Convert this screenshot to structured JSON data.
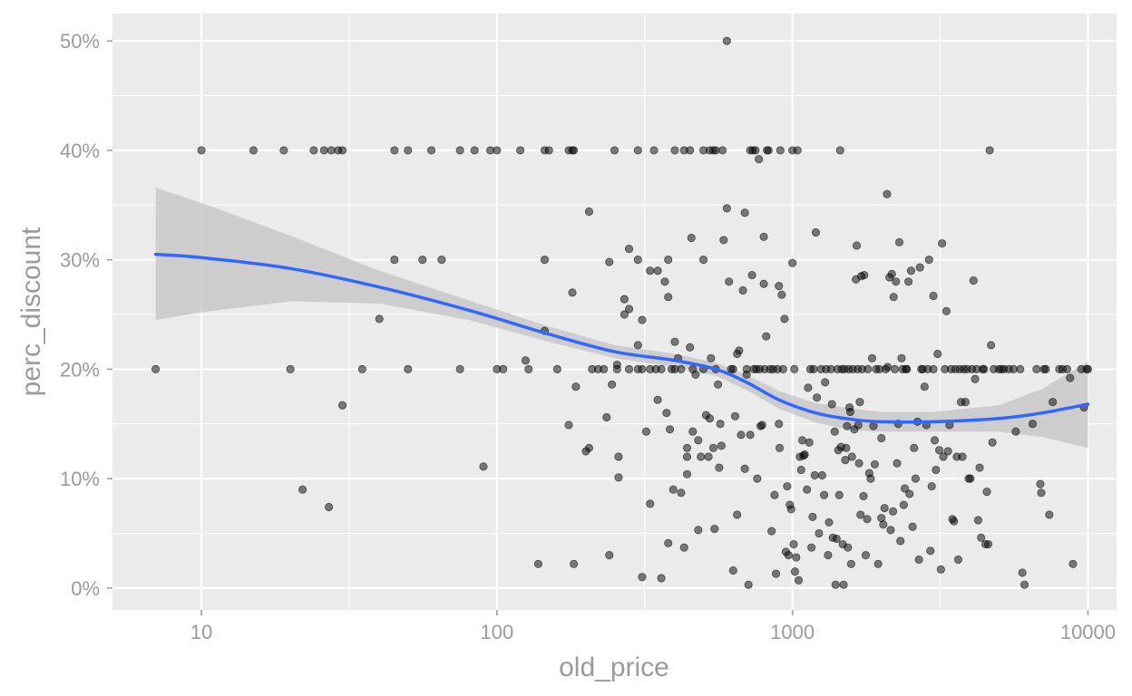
{
  "chart_data": {
    "type": "scatter",
    "title": "",
    "xlabel": "old_price",
    "ylabel": "perc_discount",
    "x_scale": "log10",
    "xlim": [
      5,
      12500
    ],
    "ylim": [
      -0.02,
      0.525
    ],
    "x_ticks": [
      10,
      100,
      1000,
      10000
    ],
    "x_tick_labels": [
      "10",
      "100",
      "1000",
      "10000"
    ],
    "y_ticks": [
      0,
      0.1,
      0.2,
      0.3,
      0.4,
      0.5
    ],
    "y_tick_labels": [
      "0%",
      "10%",
      "20%",
      "30%",
      "40%",
      "50%"
    ],
    "grid": true,
    "legend": "none",
    "colors": {
      "panel_bg": "#ebebeb",
      "grid": "#ffffff",
      "points": "#000000",
      "smooth_line": "#3366ff",
      "confidence_band": "#c8c8c8",
      "axis_text": "#9b9b9b"
    },
    "points": [
      [
        7,
        0.2
      ],
      [
        10,
        0.4
      ],
      [
        15,
        0.4
      ],
      [
        19,
        0.4
      ],
      [
        20,
        0.2
      ],
      [
        22,
        0.09
      ],
      [
        24,
        0.4
      ],
      [
        26,
        0.4
      ],
      [
        27,
        0.074
      ],
      [
        27.5,
        0.4
      ],
      [
        29,
        0.4
      ],
      [
        30,
        0.4
      ],
      [
        30,
        0.167
      ],
      [
        35,
        0.2
      ],
      [
        40,
        0.246
      ],
      [
        45,
        0.4
      ],
      [
        45,
        0.3
      ],
      [
        50,
        0.4
      ],
      [
        50,
        0.2
      ],
      [
        56,
        0.3
      ],
      [
        60,
        0.4
      ],
      [
        65,
        0.3
      ],
      [
        75,
        0.4
      ],
      [
        75,
        0.2
      ],
      [
        84,
        0.4
      ],
      [
        90,
        0.111
      ],
      [
        95,
        0.4
      ],
      [
        100,
        0.4
      ],
      [
        100,
        0.2
      ],
      [
        105,
        0.2
      ],
      [
        120,
        0.4
      ],
      [
        125,
        0.208
      ],
      [
        128,
        0.2
      ],
      [
        138,
        0.022
      ],
      [
        145,
        0.4
      ],
      [
        145,
        0.3
      ],
      [
        145,
        0.235
      ],
      [
        150,
        0.4
      ],
      [
        160,
        0.2
      ],
      [
        175,
        0.4
      ],
      [
        175,
        0.149
      ],
      [
        180,
        0.4
      ],
      [
        180,
        0.27
      ],
      [
        182,
        0.4
      ],
      [
        182,
        0.022
      ],
      [
        185,
        0.184
      ],
      [
        200,
        0.125
      ],
      [
        205,
        0.344
      ],
      [
        205,
        0.128
      ],
      [
        210,
        0.2
      ],
      [
        220,
        0.2
      ],
      [
        230,
        0.2
      ],
      [
        235,
        0.156
      ],
      [
        240,
        0.298
      ],
      [
        240,
        0.03
      ],
      [
        245,
        0.186
      ],
      [
        250,
        0.4
      ],
      [
        255,
        0.2
      ],
      [
        255,
        0.204
      ],
      [
        258,
        0.12
      ],
      [
        258,
        0.101
      ],
      [
        270,
        0.25
      ],
      [
        270,
        0.264
      ],
      [
        280,
        0.2
      ],
      [
        280,
        0.31
      ],
      [
        280,
        0.255
      ],
      [
        300,
        0.4
      ],
      [
        300,
        0.3
      ],
      [
        300,
        0.2
      ],
      [
        300,
        0.222
      ],
      [
        310,
        0.2
      ],
      [
        310,
        0.245
      ],
      [
        310,
        0.01
      ],
      [
        320,
        0.143
      ],
      [
        330,
        0.077
      ],
      [
        330,
        0.2
      ],
      [
        330,
        0.29
      ],
      [
        340,
        0.4
      ],
      [
        345,
        0.2
      ],
      [
        350,
        0.29
      ],
      [
        350,
        0.172
      ],
      [
        360,
        0.2
      ],
      [
        360,
        0.009
      ],
      [
        370,
        0.28
      ],
      [
        375,
        0.16
      ],
      [
        380,
        0.041
      ],
      [
        380,
        0.3
      ],
      [
        380,
        0.266
      ],
      [
        385,
        0.145
      ],
      [
        390,
        0.2
      ],
      [
        395,
        0.09
      ],
      [
        400,
        0.4
      ],
      [
        400,
        0.225
      ],
      [
        400,
        0.2
      ],
      [
        410,
        0.21
      ],
      [
        420,
        0.2
      ],
      [
        420,
        0.087
      ],
      [
        430,
        0.4
      ],
      [
        430,
        0.037
      ],
      [
        440,
        0.12
      ],
      [
        440,
        0.128
      ],
      [
        440,
        0.104
      ],
      [
        450,
        0.4
      ],
      [
        450,
        0.22
      ],
      [
        455,
        0.32
      ],
      [
        460,
        0.143
      ],
      [
        460,
        0.2
      ],
      [
        470,
        0.195
      ],
      [
        480,
        0.135
      ],
      [
        480,
        0.053
      ],
      [
        490,
        0.12
      ],
      [
        500,
        0.4
      ],
      [
        500,
        0.3
      ],
      [
        500,
        0.2
      ],
      [
        510,
        0.158
      ],
      [
        520,
        0.12
      ],
      [
        525,
        0.4
      ],
      [
        525,
        0.155
      ],
      [
        530,
        0.21
      ],
      [
        540,
        0.4
      ],
      [
        540,
        0.128
      ],
      [
        545,
        0.054
      ],
      [
        550,
        0.4
      ],
      [
        550,
        0.2
      ],
      [
        560,
        0.186
      ],
      [
        565,
        0.11
      ],
      [
        570,
        0.15
      ],
      [
        575,
        0.13
      ],
      [
        580,
        0.4
      ],
      [
        585,
        0.318
      ],
      [
        600,
        0.5
      ],
      [
        600,
        0.347
      ],
      [
        610,
        0.28
      ],
      [
        620,
        0.2
      ],
      [
        630,
        0.2
      ],
      [
        630,
        0.016
      ],
      [
        640,
        0.157
      ],
      [
        650,
        0.067
      ],
      [
        650,
        0.214
      ],
      [
        660,
        0.217
      ],
      [
        670,
        0.14
      ],
      [
        680,
        0.272
      ],
      [
        690,
        0.343
      ],
      [
        690,
        0.109
      ],
      [
        700,
        0.195
      ],
      [
        700,
        0.2
      ],
      [
        710,
        0.003
      ],
      [
        720,
        0.4
      ],
      [
        720,
        0.14
      ],
      [
        730,
        0.286
      ],
      [
        735,
        0.4
      ],
      [
        740,
        0.2
      ],
      [
        750,
        0.4
      ],
      [
        755,
        0.2
      ],
      [
        760,
        0.1
      ],
      [
        770,
        0.392
      ],
      [
        775,
        0.2
      ],
      [
        780,
        0.148
      ],
      [
        790,
        0.149
      ],
      [
        800,
        0.321
      ],
      [
        800,
        0.278
      ],
      [
        805,
        0.2
      ],
      [
        815,
        0.23
      ],
      [
        820,
        0.4
      ],
      [
        830,
        0.4
      ],
      [
        840,
        0.2
      ],
      [
        850,
        0.052
      ],
      [
        860,
        0.2
      ],
      [
        870,
        0.085
      ],
      [
        880,
        0.013
      ],
      [
        890,
        0.2
      ],
      [
        900,
        0.276
      ],
      [
        900,
        0.15
      ],
      [
        905,
        0.128
      ],
      [
        910,
        0.4
      ],
      [
        920,
        0.268
      ],
      [
        930,
        0.2
      ],
      [
        940,
        0.246
      ],
      [
        950,
        0.033
      ],
      [
        960,
        0.093
      ],
      [
        970,
        0.03
      ],
      [
        980,
        0.076
      ],
      [
        990,
        0.072
      ],
      [
        1000,
        0.297
      ],
      [
        1000,
        0.4
      ],
      [
        1010,
        0.04
      ],
      [
        1015,
        0.2
      ],
      [
        1020,
        0.015
      ],
      [
        1030,
        0.028
      ],
      [
        1040,
        0.4
      ],
      [
        1050,
        0.007
      ],
      [
        1060,
        0.12
      ],
      [
        1070,
        0.108
      ],
      [
        1080,
        0.135
      ],
      [
        1090,
        0.121
      ],
      [
        1100,
        0.122
      ],
      [
        1120,
        0.09
      ],
      [
        1130,
        0.183
      ],
      [
        1140,
        0.133
      ],
      [
        1150,
        0.2
      ],
      [
        1160,
        0.037
      ],
      [
        1170,
        0.065
      ],
      [
        1180,
        0.2
      ],
      [
        1190,
        0.103
      ],
      [
        1200,
        0.325
      ],
      [
        1210,
        0.174
      ],
      [
        1230,
        0.05
      ],
      [
        1250,
        0.2
      ],
      [
        1260,
        0.103
      ],
      [
        1280,
        0.085
      ],
      [
        1290,
        0.188
      ],
      [
        1300,
        0.2
      ],
      [
        1320,
        0.03
      ],
      [
        1330,
        0.06
      ],
      [
        1350,
        0.2
      ],
      [
        1360,
        0.168
      ],
      [
        1370,
        0.046
      ],
      [
        1390,
        0.143
      ],
      [
        1400,
        0.003
      ],
      [
        1410,
        0.045
      ],
      [
        1420,
        0.2
      ],
      [
        1430,
        0.126
      ],
      [
        1440,
        0.085
      ],
      [
        1450,
        0.4
      ],
      [
        1460,
        0.129
      ],
      [
        1470,
        0.2
      ],
      [
        1480,
        0.04
      ],
      [
        1490,
        0.003
      ],
      [
        1500,
        0.2
      ],
      [
        1510,
        0.117
      ],
      [
        1520,
        0.128
      ],
      [
        1530,
        0.148
      ],
      [
        1540,
        0.037
      ],
      [
        1550,
        0.2
      ],
      [
        1560,
        0.165
      ],
      [
        1570,
        0.161
      ],
      [
        1580,
        0.022
      ],
      [
        1590,
        0.12
      ],
      [
        1600,
        0.2
      ],
      [
        1620,
        0.145
      ],
      [
        1640,
        0.282
      ],
      [
        1650,
        0.313
      ],
      [
        1660,
        0.2
      ],
      [
        1670,
        0.149
      ],
      [
        1680,
        0.114
      ],
      [
        1690,
        0.17
      ],
      [
        1700,
        0.067
      ],
      [
        1710,
        0.285
      ],
      [
        1720,
        0.2
      ],
      [
        1740,
        0.084
      ],
      [
        1750,
        0.286
      ],
      [
        1770,
        0.03
      ],
      [
        1790,
        0.063
      ],
      [
        1800,
        0.2
      ],
      [
        1820,
        0.105
      ],
      [
        1840,
        0.1
      ],
      [
        1860,
        0.21
      ],
      [
        1880,
        0.148
      ],
      [
        1900,
        0.113
      ],
      [
        1920,
        0.2
      ],
      [
        1950,
        0.022
      ],
      [
        1970,
        0.2
      ],
      [
        2000,
        0.064
      ],
      [
        2000,
        0.137
      ],
      [
        2030,
        0.058
      ],
      [
        2050,
        0.073
      ],
      [
        2070,
        0.2
      ],
      [
        2090,
        0.36
      ],
      [
        2100,
        0.202
      ],
      [
        2130,
        0.284
      ],
      [
        2150,
        0.053
      ],
      [
        2170,
        0.287
      ],
      [
        2190,
        0.07
      ],
      [
        2200,
        0.266
      ],
      [
        2220,
        0.2
      ],
      [
        2240,
        0.28
      ],
      [
        2260,
        0.114
      ],
      [
        2280,
        0.15
      ],
      [
        2300,
        0.316
      ],
      [
        2320,
        0.043
      ],
      [
        2340,
        0.21
      ],
      [
        2360,
        0.2
      ],
      [
        2380,
        0.076
      ],
      [
        2400,
        0.091
      ],
      [
        2420,
        0.2
      ],
      [
        2440,
        0.2
      ],
      [
        2470,
        0.28
      ],
      [
        2490,
        0.086
      ],
      [
        2520,
        0.29
      ],
      [
        2550,
        0.056
      ],
      [
        2580,
        0.128
      ],
      [
        2610,
        0.1
      ],
      [
        2650,
        0.152
      ],
      [
        2680,
        0.026
      ],
      [
        2700,
        0.293
      ],
      [
        2730,
        0.2
      ],
      [
        2760,
        0.2
      ],
      [
        2800,
        0.184
      ],
      [
        2840,
        0.149
      ],
      [
        2870,
        0.2
      ],
      [
        2900,
        0.3
      ],
      [
        2930,
        0.034
      ],
      [
        2960,
        0.093
      ],
      [
        3000,
        0.2
      ],
      [
        3000,
        0.267
      ],
      [
        3030,
        0.135
      ],
      [
        3060,
        0.108
      ],
      [
        3100,
        0.214
      ],
      [
        3140,
        0.126
      ],
      [
        3180,
        0.017
      ],
      [
        3210,
        0.315
      ],
      [
        3240,
        0.12
      ],
      [
        3280,
        0.2
      ],
      [
        3320,
        0.253
      ],
      [
        3360,
        0.125
      ],
      [
        3400,
        0.149
      ],
      [
        3440,
        0.2
      ],
      [
        3480,
        0.063
      ],
      [
        3520,
        0.061
      ],
      [
        3560,
        0.2
      ],
      [
        3600,
        0.12
      ],
      [
        3640,
        0.026
      ],
      [
        3680,
        0.2
      ],
      [
        3720,
        0.17
      ],
      [
        3760,
        0.12
      ],
      [
        3800,
        0.2
      ],
      [
        3850,
        0.17
      ],
      [
        3900,
        0.2
      ],
      [
        3950,
        0.1
      ],
      [
        4000,
        0.1
      ],
      [
        4050,
        0.2
      ],
      [
        4100,
        0.281
      ],
      [
        4150,
        0.191
      ],
      [
        4200,
        0.2
      ],
      [
        4250,
        0.062
      ],
      [
        4300,
        0.11
      ],
      [
        4350,
        0.046
      ],
      [
        4400,
        0.2
      ],
      [
        4450,
        0.2
      ],
      [
        4500,
        0.04
      ],
      [
        4550,
        0.088
      ],
      [
        4600,
        0.04
      ],
      [
        4650,
        0.4
      ],
      [
        4700,
        0.222
      ],
      [
        4750,
        0.133
      ],
      [
        4800,
        0.2
      ],
      [
        5000,
        0.2
      ],
      [
        5100,
        0.2
      ],
      [
        5200,
        0.2
      ],
      [
        5400,
        0.2
      ],
      [
        5600,
        0.2
      ],
      [
        5700,
        0.143
      ],
      [
        5900,
        0.2
      ],
      [
        6000,
        0.014
      ],
      [
        6100,
        0.003
      ],
      [
        6500,
        0.15
      ],
      [
        6700,
        0.2
      ],
      [
        6900,
        0.095
      ],
      [
        6950,
        0.087
      ],
      [
        7100,
        0.2
      ],
      [
        7200,
        0.2
      ],
      [
        7400,
        0.067
      ],
      [
        7600,
        0.17
      ],
      [
        8000,
        0.2
      ],
      [
        8200,
        0.2
      ],
      [
        8500,
        0.2
      ],
      [
        8700,
        0.192
      ],
      [
        8900,
        0.022
      ],
      [
        9500,
        0.2
      ],
      [
        9700,
        0.165
      ],
      [
        9900,
        0.2
      ],
      [
        10000,
        0.2
      ]
    ],
    "smooth_line": {
      "x": [
        7,
        10,
        20,
        40,
        80,
        150,
        250,
        400,
        550,
        700,
        900,
        1200,
        1600,
        2000,
        3000,
        5000,
        7000,
        10000
      ],
      "y": [
        0.305,
        0.302,
        0.292,
        0.275,
        0.254,
        0.232,
        0.216,
        0.208,
        0.2,
        0.188,
        0.172,
        0.16,
        0.154,
        0.152,
        0.152,
        0.155,
        0.16,
        0.168
      ]
    },
    "confidence_band": {
      "x": [
        7,
        10,
        20,
        40,
        80,
        150,
        250,
        400,
        550,
        700,
        900,
        1200,
        1600,
        2000,
        3000,
        5000,
        7000,
        10000
      ],
      "lower": [
        0.245,
        0.252,
        0.262,
        0.26,
        0.245,
        0.225,
        0.21,
        0.202,
        0.194,
        0.181,
        0.164,
        0.151,
        0.144,
        0.143,
        0.143,
        0.143,
        0.138,
        0.128
      ],
      "upper": [
        0.366,
        0.352,
        0.322,
        0.29,
        0.263,
        0.239,
        0.222,
        0.214,
        0.206,
        0.195,
        0.18,
        0.169,
        0.164,
        0.161,
        0.161,
        0.167,
        0.182,
        0.207
      ]
    }
  }
}
